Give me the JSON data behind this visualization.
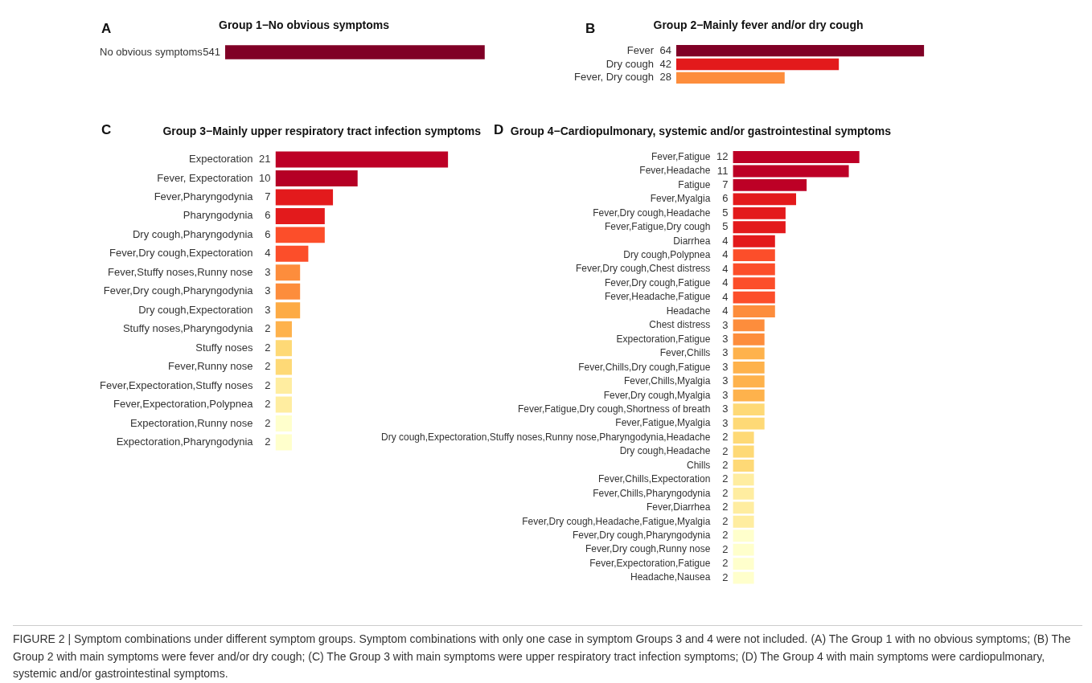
{
  "chart_data": [
    {
      "type": "bar",
      "orientation": "horizontal",
      "title": "Group 1−No obvious symptoms",
      "annotations": [
        "A"
      ],
      "categories": [
        "No obvious symptoms"
      ],
      "values": [
        541
      ],
      "colors": [
        "#800026"
      ],
      "data_labels": true,
      "grid": false,
      "legend": false
    },
    {
      "type": "bar",
      "orientation": "horizontal",
      "title": "Group 2−Mainly fever and/or dry cough",
      "annotations": [
        "B"
      ],
      "categories": [
        "Fever",
        "Dry cough",
        "Fever, Dry cough"
      ],
      "values": [
        64,
        42,
        28
      ],
      "colors": [
        "#800026",
        "#e31a1c",
        "#fd8d3c"
      ],
      "data_labels": true,
      "grid": false,
      "legend": false
    },
    {
      "type": "bar",
      "orientation": "horizontal",
      "title": "Group 3−Mainly upper respiratory tract infection symptoms",
      "annotations": [
        "C"
      ],
      "categories": [
        "Expectoration",
        "Fever, Expectoration",
        "Fever,Pharyngodynia",
        "Pharyngodynia",
        "Dry cough,Pharyngodynia",
        "Fever,Dry cough,Expectoration",
        "Fever,Stuffy noses,Runny nose",
        "Fever,Dry cough,Pharyngodynia",
        "Dry cough,Expectoration",
        "Stuffy noses,Pharyngodynia",
        "Stuffy noses",
        "Fever,Runny nose",
        "Fever,Expectoration,Stuffy noses",
        "Fever,Expectoration,Polypnea",
        "Expectoration,Runny nose",
        "Expectoration,Pharyngodynia"
      ],
      "values": [
        21,
        10,
        7,
        6,
        6,
        4,
        3,
        3,
        3,
        2,
        2,
        2,
        2,
        2,
        2,
        2
      ],
      "colors": [
        "#bd0026",
        "#b50025",
        "#e31a1c",
        "#e31a1c",
        "#fc4e2a",
        "#fc4e2a",
        "#fd8d3c",
        "#fd8d3c",
        "#fdab45",
        "#feb24c",
        "#fed976",
        "#fed976",
        "#ffeda0",
        "#ffeda0",
        "#ffffcc",
        "#ffffcc"
      ],
      "data_labels": true,
      "grid": false,
      "legend": false
    },
    {
      "type": "bar",
      "orientation": "horizontal",
      "title": "Group 4−Cardiopulmonary, systemic and/or gastrointestinal symptoms",
      "annotations": [
        "D",
        "FIGURE 2 | Symptom combinations under different symptom groups. Symptom combinations with only one case in symptom Groups 3 and 4 were not included. (A) The Group 1 with no obvious symptoms; (B) The Group 2 with main symptoms were fever and/or dry cough; (C) The Group 3 with main symptoms were upper respiratory tract infection symptoms; (D) The Group 4 with main symptoms were cardiopulmonary, systemic and/or gastrointestinal symptoms."
      ],
      "categories": [
        "Fever,Fatigue",
        "Fever,Headache",
        "Fatigue",
        "Fever,Myalgia",
        "Fever,Dry cough,Headache",
        "Fever,Fatigue,Dry cough",
        "Diarrhea",
        "Dry cough,Polypnea",
        "Fever,Dry cough,Chest distress",
        "Fever,Dry cough,Fatigue",
        "Fever,Headache,Fatigue",
        "Headache",
        "Chest distress",
        "Expectoration,Fatigue",
        "Fever,Chills",
        "Fever,Chills,Dry cough,Fatigue",
        "Fever,Chills,Myalgia",
        "Fever,Dry cough,Myalgia",
        "Fever,Fatigue,Dry cough,Shortness of breath",
        "Fever,Fatigue,Myalgia",
        "Dry cough,Expectoration,Stuffy noses,Runny nose,Pharyngodynia,Headache",
        "Dry cough,Headache",
        "Chills",
        "Fever,Chills,Expectoration",
        "Fever,Chills,Pharyngodynia",
        "Fever,Diarrhea",
        "Fever,Dry cough,Headache,Fatigue,Myalgia",
        "Fever,Dry cough,Pharyngodynia",
        "Fever,Dry cough,Runny nose",
        "Fever,Expectoration,Fatigue",
        "Headache,Nausea"
      ],
      "values": [
        12,
        11,
        7,
        6,
        5,
        5,
        4,
        4,
        4,
        4,
        4,
        4,
        3,
        3,
        3,
        3,
        3,
        3,
        3,
        3,
        2,
        2,
        2,
        2,
        2,
        2,
        2,
        2,
        2,
        2,
        2
      ],
      "colors": [
        "#bd0026",
        "#bd0026",
        "#bd0026",
        "#e31a1c",
        "#e31a1c",
        "#e31a1c",
        "#e31a1c",
        "#fc4e2a",
        "#fc4e2a",
        "#fc4e2a",
        "#fc4e2a",
        "#fd8d3c",
        "#fd8d3c",
        "#fd8d3c",
        "#feb24c",
        "#feb24c",
        "#feb24c",
        "#feb24c",
        "#fed976",
        "#fed976",
        "#fed976",
        "#fed976",
        "#fed976",
        "#ffeda0",
        "#ffeda0",
        "#ffeda0",
        "#ffeda0",
        "#ffffcc",
        "#ffffcc",
        "#ffffcc",
        "#ffffcc"
      ],
      "data_labels": true,
      "grid": false,
      "legend": false
    }
  ]
}
